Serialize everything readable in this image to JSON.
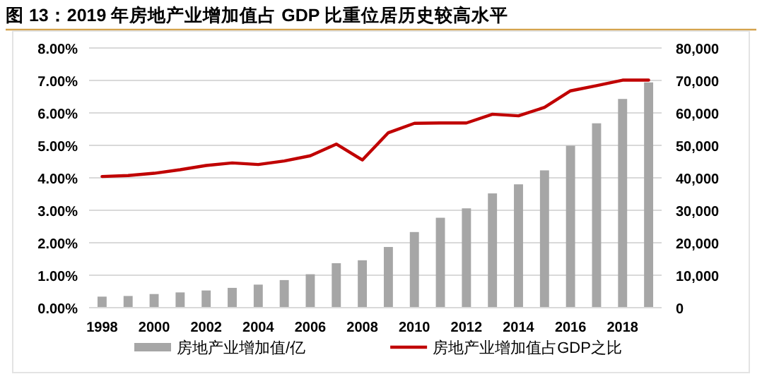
{
  "chart_data": {
    "type": "bar",
    "title": "图 13：2019 年房地产业增加值占 GDP 比重位居历史较高水平",
    "categories": [
      "1998",
      null,
      "2000",
      null,
      "2002",
      null,
      "2004",
      null,
      "2006",
      null,
      "2008",
      null,
      "2010",
      null,
      "2012",
      null,
      "2014",
      null,
      "2016",
      null,
      "2018",
      null
    ],
    "series": [
      {
        "name": "房地产业增加值/亿",
        "axis": "y2",
        "color": "#a6a6a6",
        "values": [
          3400,
          3600,
          4200,
          4700,
          5300,
          6100,
          7100,
          8500,
          10300,
          13700,
          14600,
          18700,
          23300,
          27700,
          30600,
          35200,
          38000,
          42300,
          49900,
          56800,
          64300,
          69400
        ]
      },
      {
        "name": "房地产业增加值占GDP之比",
        "type": "line",
        "axis": "y",
        "color": "#c00000",
        "values": [
          4.04,
          4.07,
          4.14,
          4.25,
          4.38,
          4.46,
          4.41,
          4.52,
          4.68,
          5.04,
          4.55,
          5.39,
          5.68,
          5.69,
          5.69,
          5.96,
          5.91,
          6.17,
          6.68,
          6.84,
          7.01,
          7.01
        ]
      }
    ],
    "ylim": [
      0,
      8
    ],
    "yticks": [
      {
        "value": 0,
        "label": "0.00%"
      },
      {
        "value": 1,
        "label": "1.00%"
      },
      {
        "value": 2,
        "label": "2.00%"
      },
      {
        "value": 3,
        "label": "3.00%"
      },
      {
        "value": 4,
        "label": "4.00%"
      },
      {
        "value": 5,
        "label": "5.00%"
      },
      {
        "value": 6,
        "label": "6.00%"
      },
      {
        "value": 7,
        "label": "7.00%"
      },
      {
        "value": 8,
        "label": "8.00%"
      }
    ],
    "y2lim": [
      0,
      80000
    ],
    "y2ticks": [
      0,
      {
        "value": 10000,
        "label": "10,000"
      },
      {
        "value": 20000,
        "label": "20,000"
      },
      {
        "value": 30000,
        "label": "30,000"
      },
      {
        "value": 40000,
        "label": "40,000"
      },
      {
        "value": 50000,
        "label": "50,000"
      },
      {
        "value": 60000,
        "label": "60,000"
      },
      {
        "value": 70000,
        "label": "70,000"
      },
      {
        "value": 80000,
        "label": "80,000"
      }
    ],
    "grid": "y",
    "legend": "bottom"
  }
}
